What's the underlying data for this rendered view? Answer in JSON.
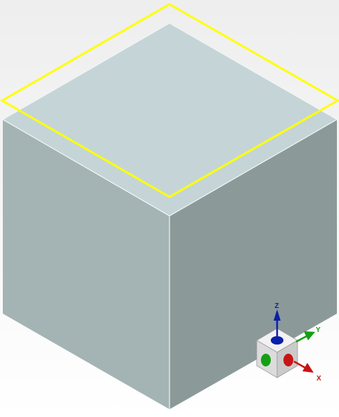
{
  "viewport": {
    "background_top": "#eeeeee",
    "background_bottom": "#ffffff"
  },
  "model": {
    "shape": "cube",
    "colors": {
      "top_face": "#c5d5d7",
      "left_face": "#a4b3b3",
      "right_face": "#8b9999",
      "edge": "#f2f7f7"
    },
    "selection": {
      "target": "top_face",
      "color": "#ffff00"
    }
  },
  "triad": {
    "axes": {
      "z": {
        "label": "Z",
        "color": "#0b1fa8"
      },
      "y": {
        "label": "Y",
        "color": "#14a014"
      },
      "x": {
        "label": "X",
        "color": "#c81414"
      }
    },
    "cube_colors": {
      "top": "#f2f2f2",
      "left": "#dcdcdc",
      "right": "#cacaca"
    }
  }
}
